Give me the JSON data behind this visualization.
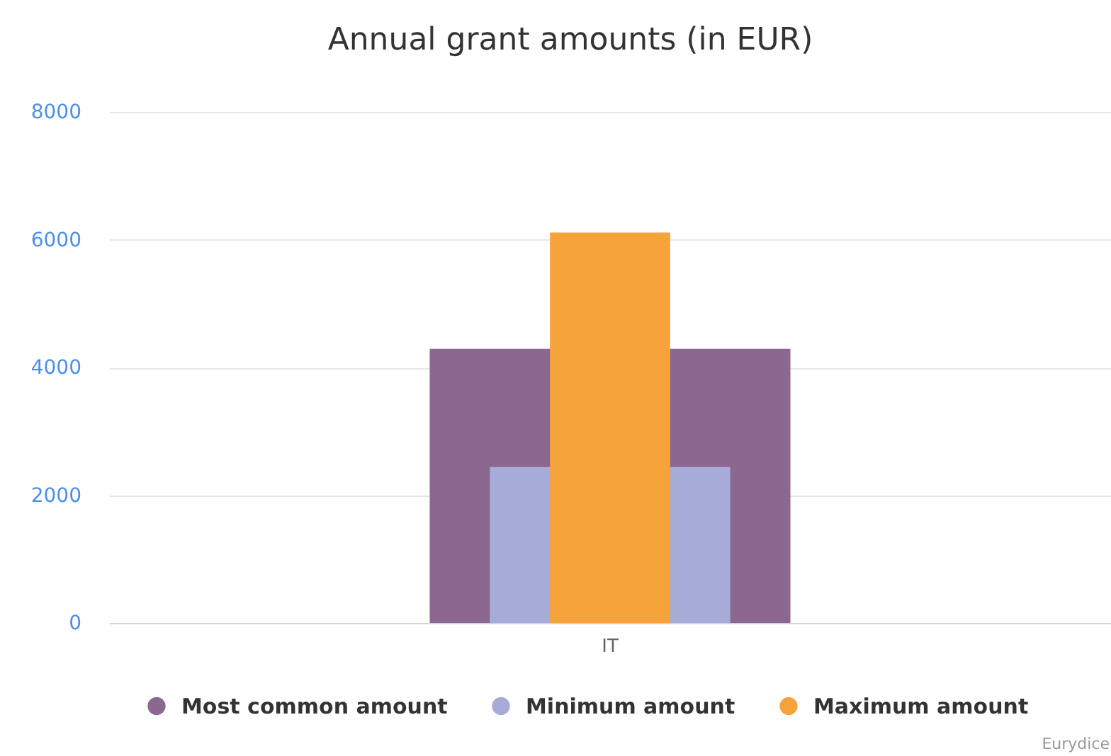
{
  "chart_data": {
    "type": "bar",
    "title": "Annual grant amounts (in EUR)",
    "categories": [
      "IT"
    ],
    "series": [
      {
        "name": "Most common amount",
        "color": "#8c6790",
        "values": [
          4290
        ]
      },
      {
        "name": "Minimum amount",
        "color": "#a6abd8",
        "values": [
          2440
        ]
      },
      {
        "name": "Maximum amount",
        "color": "#f7a33c",
        "values": [
          6110
        ]
      }
    ],
    "ylim": [
      0,
      8000
    ],
    "yticks": [
      0,
      2000,
      4000,
      6000,
      8000
    ],
    "grid": "y",
    "legend": "bottom",
    "annotations": [
      "Eurydice"
    ]
  }
}
